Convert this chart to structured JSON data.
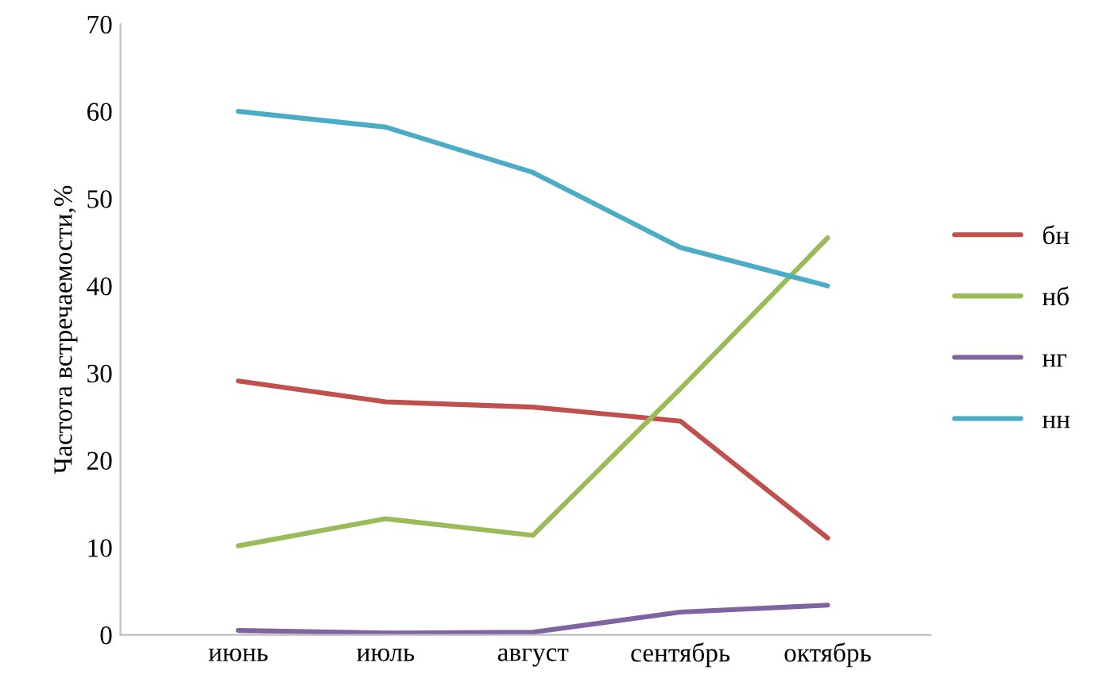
{
  "chart_data": {
    "type": "line",
    "ylabel": "Частота встречаемости,%",
    "categories": [
      "июнь",
      "июль",
      "август",
      "сентябрь",
      "октябрь"
    ],
    "series": [
      {
        "name": "бн",
        "color": "#c0504d",
        "values": [
          29.1,
          26.7,
          26.1,
          24.5,
          11.1
        ]
      },
      {
        "name": "нб",
        "color": "#9bbb59",
        "values": [
          10.2,
          13.3,
          11.4,
          28.2,
          45.5
        ]
      },
      {
        "name": "нг",
        "color": "#8064a2",
        "values": [
          0.5,
          0.2,
          0.3,
          2.6,
          3.4
        ]
      },
      {
        "name": "нн",
        "color": "#4bacc6",
        "values": [
          60,
          58.2,
          53,
          44.4,
          40
        ]
      }
    ],
    "ylim": [
      0,
      70
    ],
    "yticks": [
      0,
      10,
      20,
      30,
      40,
      50,
      60,
      70
    ],
    "grid": false,
    "legend": "right",
    "marker": "none",
    "line_style": "solid"
  }
}
